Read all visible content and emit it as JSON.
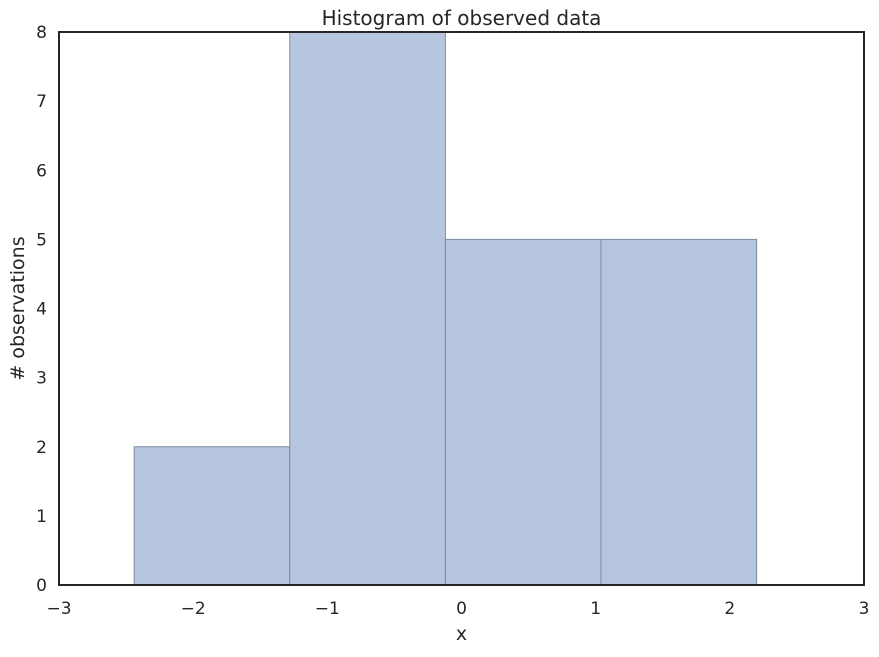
{
  "chart_data": {
    "type": "bar",
    "title": "Histogram of observed data",
    "xlabel": "x",
    "ylabel": "# observations",
    "xlim": [
      -3,
      3
    ],
    "ylim": [
      0,
      8
    ],
    "xticks": [
      -3,
      -2,
      -1,
      0,
      1,
      2,
      3
    ],
    "xtick_labels": [
      "−3",
      "−2",
      "−1",
      "0",
      "1",
      "2",
      "3"
    ],
    "yticks": [
      0,
      1,
      2,
      3,
      4,
      5,
      6,
      7,
      8
    ],
    "ytick_labels": [
      "0",
      "1",
      "2",
      "3",
      "4",
      "5",
      "6",
      "7",
      "8"
    ],
    "bins": [
      {
        "x0": -2.44,
        "x1": -1.28,
        "count": 2
      },
      {
        "x0": -1.28,
        "x1": -0.12,
        "count": 8
      },
      {
        "x0": -0.12,
        "x1": 1.04,
        "count": 5
      },
      {
        "x0": 1.04,
        "x1": 2.2,
        "count": 5
      }
    ],
    "grid": false,
    "colors": {
      "bar_fill": "#b6c6de",
      "bar_edge": "#7f8ba2",
      "axes": "#262626",
      "text": "#262626"
    }
  }
}
